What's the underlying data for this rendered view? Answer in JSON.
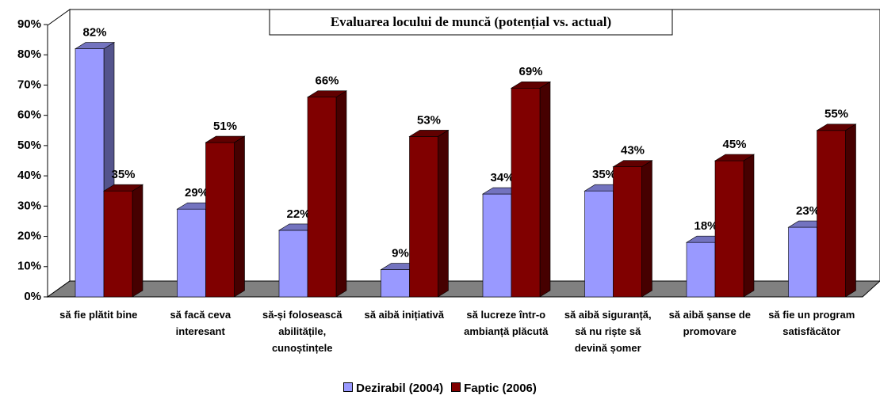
{
  "chart_data": {
    "type": "bar3d",
    "title": "Evaluarea locului de muncă (potențial vs. actual)",
    "categories": [
      "să fie plătit bine",
      "să facă ceva interesant",
      "să-și folosească abilitățile, cunoștințele",
      "să aibă inițiativă",
      "să lucreze într-o ambianță plăcută",
      "să aibă siguranță, să nu riște să devină șomer",
      "să aibă șanse de promovare",
      "să fie un program satisfăcător"
    ],
    "series": [
      {
        "name": "Dezirabil (2004)",
        "color": "#9999ff",
        "values": [
          82,
          29,
          22,
          9,
          34,
          35,
          18,
          23
        ],
        "value_labels": [
          "82%",
          "29%",
          "22%",
          "9%",
          "34%",
          "35%",
          "18%",
          "23%"
        ]
      },
      {
        "name": "Faptic (2006)",
        "color": "#800000",
        "values": [
          35,
          51,
          66,
          53,
          69,
          43,
          45,
          55
        ],
        "value_labels": [
          "35%",
          "51%",
          "66%",
          "53%",
          "69%",
          "43%",
          "45%",
          "55%"
        ]
      }
    ],
    "ylim": [
      0,
      90
    ],
    "yticks": [
      {
        "value": 0,
        "label": "0%"
      },
      {
        "value": 10,
        "label": "10%"
      },
      {
        "value": 20,
        "label": "20%"
      },
      {
        "value": 30,
        "label": "30%"
      },
      {
        "value": 40,
        "label": "40%"
      },
      {
        "value": 50,
        "label": "50%"
      },
      {
        "value": 60,
        "label": "60%"
      },
      {
        "value": 70,
        "label": "70%"
      },
      {
        "value": 80,
        "label": "80%"
      },
      {
        "value": 90,
        "label": "90%"
      }
    ],
    "legend": "bottom"
  }
}
